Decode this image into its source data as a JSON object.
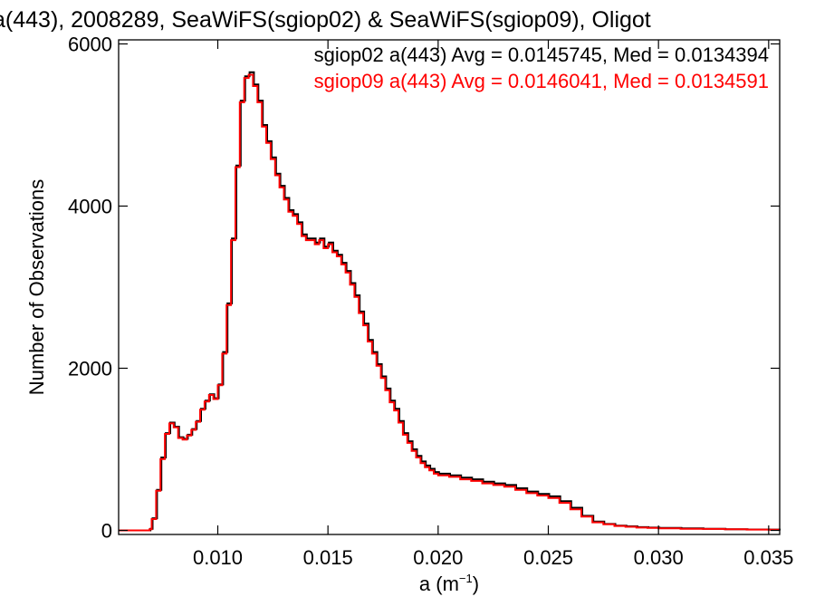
{
  "chart_data": {
    "type": "line",
    "step": true,
    "title": "a(443), 2008289, SeaWiFS(sgiop02) & SeaWiFS(sgiop09), Oligot",
    "xlabel": "a (m",
    "xlabel_sup": "−1",
    "xlabel_tail": ")",
    "ylabel": "Number of Observations",
    "xlim": [
      0.0055,
      0.0355
    ],
    "ylim": [
      -50,
      6050
    ],
    "x_ticks": [
      0.01,
      0.015,
      0.02,
      0.025,
      0.03,
      0.035
    ],
    "x_tick_labels": [
      "0.010",
      "0.015",
      "0.020",
      "0.025",
      "0.030",
      "0.035"
    ],
    "y_ticks": [
      0,
      2000,
      4000,
      6000
    ],
    "y_tick_labels": [
      "0",
      "2000",
      "4000",
      "6000"
    ],
    "grid": false,
    "legend_position": "top-right",
    "legend": [
      {
        "text": "sgiop02 a(443) Avg = 0.0145745, Med = 0.0134394",
        "color": "#000000"
      },
      {
        "text": "sgiop09 a(443) Avg = 0.0146041, Med = 0.0134591",
        "color": "#ff0000"
      }
    ],
    "series": [
      {
        "name": "sgiop02",
        "color": "#000000",
        "x": [
          0.0055,
          0.006,
          0.0065,
          0.0069,
          0.007,
          0.0072,
          0.0074,
          0.0076,
          0.0078,
          0.008,
          0.0082,
          0.0084,
          0.0086,
          0.0088,
          0.009,
          0.0092,
          0.0094,
          0.0096,
          0.0098,
          0.01,
          0.0102,
          0.0104,
          0.0106,
          0.0108,
          0.011,
          0.0112,
          0.0114,
          0.0116,
          0.0118,
          0.012,
          0.0122,
          0.0124,
          0.0126,
          0.0128,
          0.013,
          0.0132,
          0.0134,
          0.0136,
          0.0138,
          0.014,
          0.0142,
          0.0144,
          0.0146,
          0.0148,
          0.015,
          0.0152,
          0.0154,
          0.0156,
          0.0158,
          0.016,
          0.0162,
          0.0164,
          0.0166,
          0.0168,
          0.017,
          0.0172,
          0.0174,
          0.0176,
          0.0178,
          0.018,
          0.0182,
          0.0184,
          0.0186,
          0.0188,
          0.019,
          0.0192,
          0.0194,
          0.0196,
          0.0198,
          0.02,
          0.0205,
          0.021,
          0.0215,
          0.022,
          0.0225,
          0.023,
          0.0235,
          0.024,
          0.0245,
          0.025,
          0.0255,
          0.026,
          0.0265,
          0.027,
          0.0275,
          0.028,
          0.0285,
          0.029,
          0.0295,
          0.03,
          0.031,
          0.032,
          0.033,
          0.034,
          0.035
        ],
        "y": [
          0,
          0,
          0,
          20,
          150,
          500,
          900,
          1200,
          1330,
          1280,
          1150,
          1130,
          1180,
          1250,
          1350,
          1500,
          1600,
          1680,
          1630,
          1800,
          2200,
          2800,
          3600,
          4500,
          5300,
          5600,
          5650,
          5500,
          5300,
          5000,
          4800,
          4600,
          4400,
          4250,
          4100,
          3950,
          3900,
          3800,
          3650,
          3600,
          3600,
          3550,
          3600,
          3500,
          3550,
          3450,
          3400,
          3300,
          3200,
          3050,
          2900,
          2700,
          2550,
          2350,
          2200,
          2050,
          1900,
          1750,
          1600,
          1500,
          1350,
          1200,
          1100,
          1000,
          920,
          850,
          800,
          760,
          720,
          700,
          680,
          650,
          630,
          600,
          580,
          560,
          520,
          480,
          450,
          420,
          360,
          280,
          180,
          110,
          80,
          60,
          50,
          40,
          35,
          30,
          25,
          20,
          15,
          12,
          10
        ]
      },
      {
        "name": "sgiop09",
        "color": "#ff0000",
        "x": [
          0.0055,
          0.006,
          0.0065,
          0.0069,
          0.007,
          0.0072,
          0.0074,
          0.0076,
          0.0078,
          0.008,
          0.0082,
          0.0084,
          0.0086,
          0.0088,
          0.009,
          0.0092,
          0.0094,
          0.0096,
          0.0098,
          0.01,
          0.0102,
          0.0104,
          0.0106,
          0.0108,
          0.011,
          0.0112,
          0.0114,
          0.0116,
          0.0118,
          0.012,
          0.0122,
          0.0124,
          0.0126,
          0.0128,
          0.013,
          0.0132,
          0.0134,
          0.0136,
          0.0138,
          0.014,
          0.0142,
          0.0144,
          0.0146,
          0.0148,
          0.015,
          0.0152,
          0.0154,
          0.0156,
          0.0158,
          0.016,
          0.0162,
          0.0164,
          0.0166,
          0.0168,
          0.017,
          0.0172,
          0.0174,
          0.0176,
          0.0178,
          0.018,
          0.0182,
          0.0184,
          0.0186,
          0.0188,
          0.019,
          0.0192,
          0.0194,
          0.0196,
          0.0198,
          0.02,
          0.0205,
          0.021,
          0.0215,
          0.022,
          0.0225,
          0.023,
          0.0235,
          0.024,
          0.0245,
          0.025,
          0.0255,
          0.026,
          0.0265,
          0.027,
          0.0275,
          0.028,
          0.0285,
          0.029,
          0.0295,
          0.03,
          0.031,
          0.032,
          0.033,
          0.034,
          0.035
        ],
        "y": [
          0,
          0,
          0,
          15,
          140,
          490,
          880,
          1190,
          1320,
          1270,
          1140,
          1120,
          1170,
          1240,
          1340,
          1490,
          1590,
          1670,
          1620,
          1790,
          2180,
          2780,
          3580,
          4480,
          5280,
          5580,
          5620,
          5480,
          5280,
          4980,
          4780,
          4580,
          4380,
          4230,
          4080,
          3930,
          3880,
          3780,
          3630,
          3580,
          3580,
          3530,
          3580,
          3480,
          3530,
          3430,
          3380,
          3280,
          3180,
          3030,
          2880,
          2680,
          2530,
          2330,
          2180,
          2030,
          1880,
          1730,
          1580,
          1480,
          1330,
          1180,
          1080,
          980,
          900,
          830,
          780,
          740,
          700,
          680,
          660,
          630,
          610,
          580,
          560,
          540,
          500,
          460,
          430,
          400,
          340,
          260,
          170,
          100,
          75,
          55,
          45,
          35,
          30,
          25,
          20,
          18,
          14,
          10,
          8
        ]
      }
    ]
  }
}
